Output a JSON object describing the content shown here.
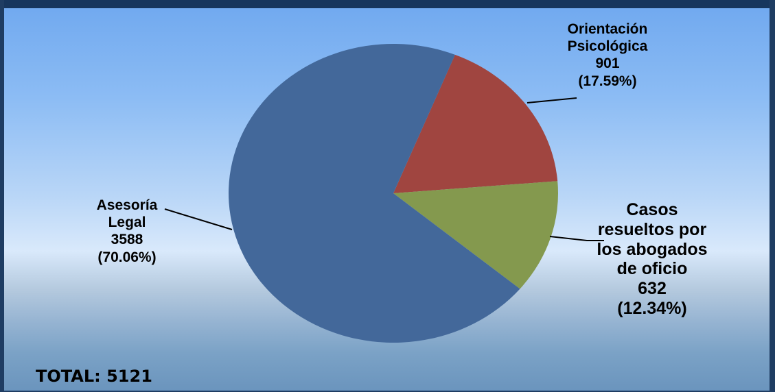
{
  "chart_data": {
    "type": "pie",
    "slices": [
      {
        "name_lines": [
          "Asesoría",
          "Legal"
        ],
        "value": 3588,
        "value_text": "3588",
        "percent": 70.06,
        "percent_text": "(70.06%)",
        "color": "#43689a"
      },
      {
        "name_lines": [
          "Orientación",
          "Psicológica"
        ],
        "value": 901,
        "value_text": "901",
        "percent": 17.59,
        "percent_text": "(17.59%)",
        "color": "#a04540"
      },
      {
        "name_lines": [
          "Casos",
          "resueltos por",
          "los abogados",
          "de oficio"
        ],
        "value": 632,
        "value_text": "632",
        "percent": 12.34,
        "percent_text": "(12.34%)",
        "color": "#84994e"
      }
    ],
    "total_text": "TOTAL: 5121"
  }
}
